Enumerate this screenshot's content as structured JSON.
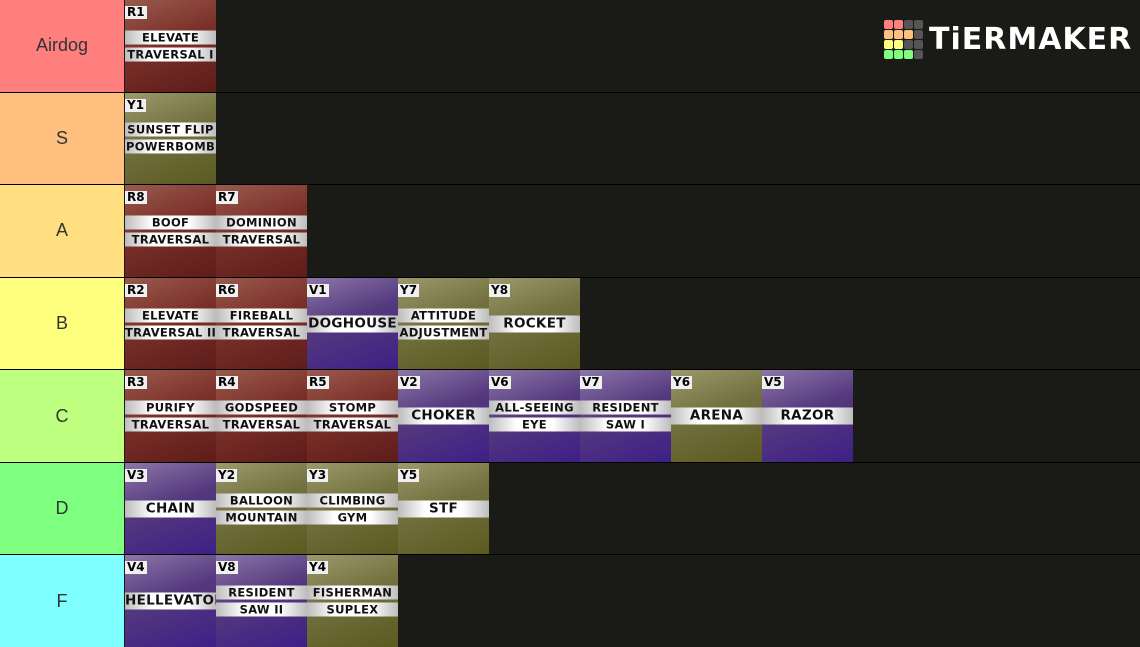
{
  "logo": "TiERMAKER",
  "tiers": [
    {
      "label": "Airdog",
      "color": "#ff7f7f",
      "items": [
        {
          "code": "R1",
          "lines": [
            "ELEVATE",
            "TRAVERSAL I"
          ]
        }
      ]
    },
    {
      "label": "S",
      "color": "#ffbf7f",
      "items": [
        {
          "code": "Y1",
          "lines": [
            "SUNSET FLIP",
            "POWERBOMB"
          ]
        }
      ]
    },
    {
      "label": "A",
      "color": "#ffdf7f",
      "items": [
        {
          "code": "R8",
          "lines": [
            "BOOF",
            "TRAVERSAL"
          ]
        },
        {
          "code": "R7",
          "lines": [
            "DOMINION",
            "TRAVERSAL"
          ]
        }
      ]
    },
    {
      "label": "B",
      "color": "#ffff7f",
      "items": [
        {
          "code": "R2",
          "lines": [
            "ELEVATE",
            "TRAVERSAL II"
          ]
        },
        {
          "code": "R6",
          "lines": [
            "FIREBALL",
            "TRAVERSAL"
          ]
        },
        {
          "code": "V1",
          "lines": [
            "DOGHOUSE"
          ]
        },
        {
          "code": "Y7",
          "lines": [
            "ATTITUDE",
            "ADJUSTMENT"
          ]
        },
        {
          "code": "Y8",
          "lines": [
            "ROCKET"
          ]
        }
      ]
    },
    {
      "label": "C",
      "color": "#bfff7f",
      "items": [
        {
          "code": "R3",
          "lines": [
            "PURIFY",
            "TRAVERSAL"
          ]
        },
        {
          "code": "R4",
          "lines": [
            "GODSPEED",
            "TRAVERSAL"
          ]
        },
        {
          "code": "R5",
          "lines": [
            "STOMP",
            "TRAVERSAL"
          ]
        },
        {
          "code": "V2",
          "lines": [
            "CHOKER"
          ]
        },
        {
          "code": "V6",
          "lines": [
            "ALL-SEEING",
            "EYE"
          ]
        },
        {
          "code": "V7",
          "lines": [
            "RESIDENT",
            "SAW I"
          ]
        },
        {
          "code": "Y6",
          "lines": [
            "ARENA"
          ]
        },
        {
          "code": "V5",
          "lines": [
            "RAZOR"
          ]
        }
      ]
    },
    {
      "label": "D",
      "color": "#7fff7f",
      "items": [
        {
          "code": "V3",
          "lines": [
            "CHAIN"
          ]
        },
        {
          "code": "Y2",
          "lines": [
            "BALLOON",
            "MOUNTAIN"
          ]
        },
        {
          "code": "Y3",
          "lines": [
            "CLIMBING",
            "GYM"
          ]
        },
        {
          "code": "Y5",
          "lines": [
            "STF"
          ]
        }
      ]
    },
    {
      "label": "F",
      "color": "#7fffff",
      "items": [
        {
          "code": "V4",
          "lines": [
            "HELLEVATOR"
          ]
        },
        {
          "code": "V8",
          "lines": [
            "RESIDENT",
            "SAW II"
          ]
        },
        {
          "code": "Y4",
          "lines": [
            "FISHERMAN",
            "SUPLEX"
          ]
        }
      ]
    }
  ]
}
